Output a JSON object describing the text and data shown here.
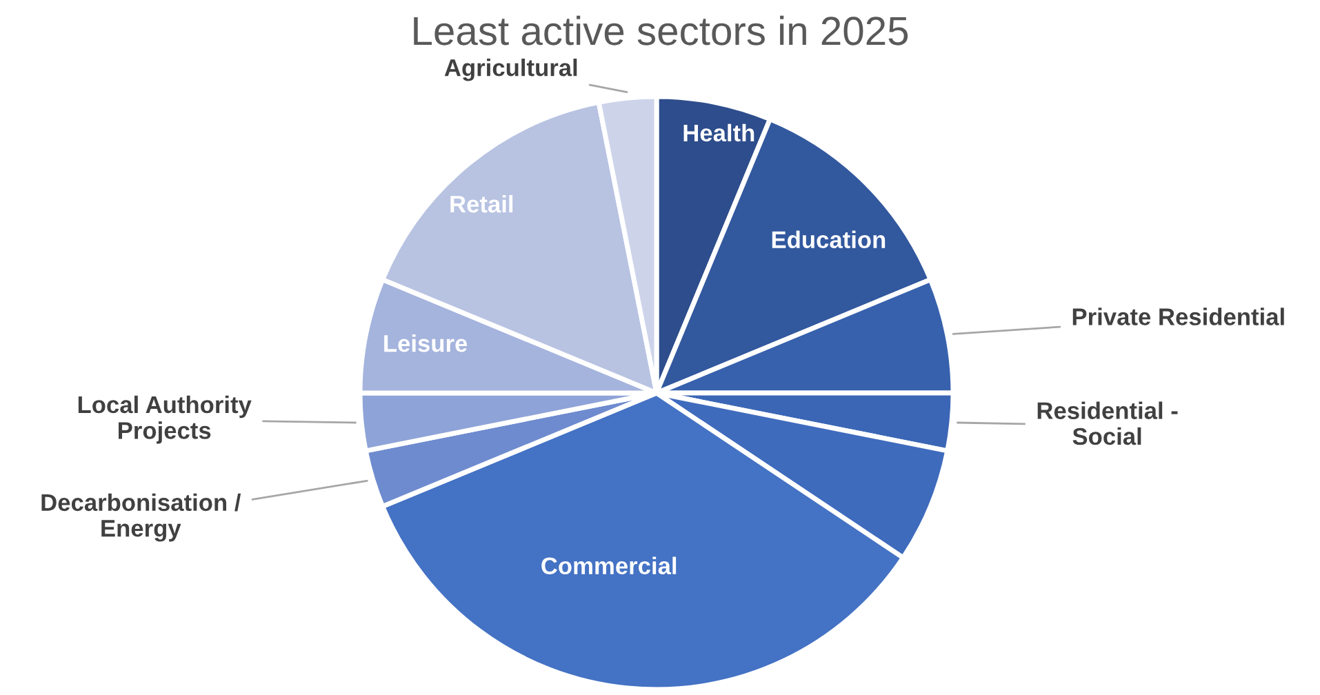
{
  "chart_data": {
    "type": "pie",
    "title": "Least active sectors in 2025",
    "categories": [
      "Health",
      "Education",
      "Private Residential",
      "Residential -\nSocial",
      null,
      "Commercial",
      "Decarbonisation /\nEnergy",
      "Local Authority\nProjects",
      "Leisure",
      "Retail",
      "Agricultural"
    ],
    "values": [
      6.25,
      12.5,
      6.25,
      3.125,
      6.25,
      34.375,
      3.125,
      3.125,
      6.25,
      15.625,
      3.125
    ],
    "colors": [
      "#2e4d8c",
      "#32589e",
      "#3761ad",
      "#3b66b5",
      "#3f6bbd",
      "#4472c4",
      "#6e8bcf",
      "#8ea3d7",
      "#a5b4dd",
      "#b8c3e2",
      "#cdd4ea"
    ]
  }
}
